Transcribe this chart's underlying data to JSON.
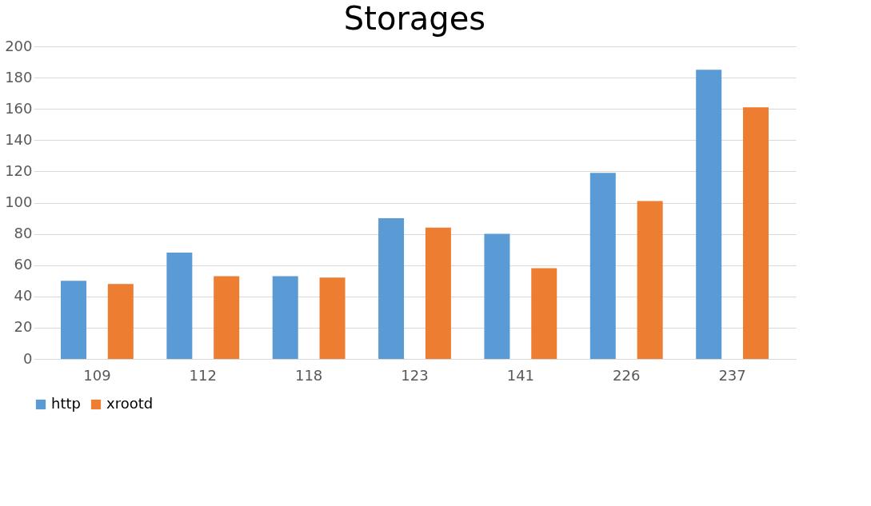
{
  "chart_data": {
    "type": "bar",
    "title": "Storages",
    "categories": [
      "109",
      "112",
      "118",
      "123",
      "141",
      "226",
      "237"
    ],
    "series": [
      {
        "name": "http",
        "color": "#5b9bd5",
        "values": [
          50,
          68,
          53,
          90,
          80,
          119,
          185
        ]
      },
      {
        "name": "xrootd",
        "color": "#ed7d31",
        "values": [
          48,
          53,
          52,
          84,
          58,
          101,
          161
        ]
      }
    ],
    "ylim": [
      0,
      200
    ],
    "yticks": [
      0,
      20,
      40,
      60,
      80,
      100,
      120,
      140,
      160,
      180,
      200
    ],
    "grid": "y",
    "legend": "bottom"
  }
}
